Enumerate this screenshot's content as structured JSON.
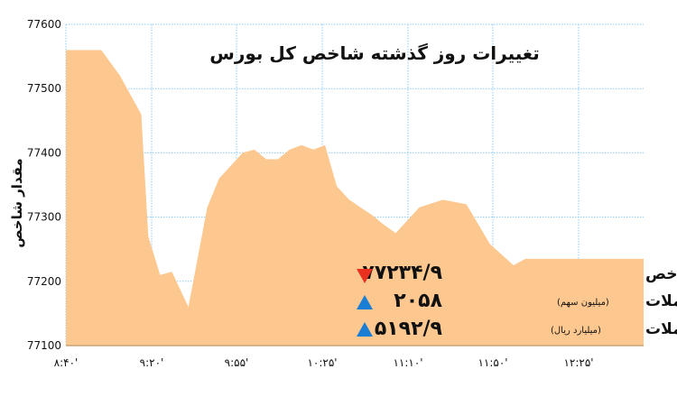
{
  "chart_data": {
    "type": "area",
    "title": "تغییرات روز گذشته شاخص کل بورس",
    "ylabel": "مقدار شاخص",
    "xlabel": "",
    "ylim": [
      77100,
      77600
    ],
    "yticks": [
      77100,
      77200,
      77300,
      77400,
      77500,
      77600
    ],
    "xticks": [
      "۸:۴۰'",
      "۹:۲۰'",
      "۹:۵۵'",
      "۱۰:۲۵'",
      "۱۱:۱۰'",
      "۱۱:۵۰'",
      "۱۲:۲۵'"
    ],
    "x": [
      "08:40",
      "08:55",
      "09:03",
      "09:12",
      "09:15",
      "09:20",
      "09:25",
      "09:32",
      "09:40",
      "09:45",
      "09:55",
      "10:00",
      "10:05",
      "10:10",
      "10:15",
      "10:20",
      "10:25",
      "10:30",
      "10:35",
      "10:40",
      "10:45",
      "10:50",
      "10:55",
      "11:00",
      "11:10",
      "11:20",
      "11:30",
      "11:40",
      "11:50",
      "11:55",
      "12:00",
      "12:05",
      "12:10",
      "12:15",
      "12:20",
      "12:25"
    ],
    "values": [
      77560,
      77560,
      77520,
      77460,
      77270,
      77210,
      77215,
      77160,
      77315,
      77360,
      77400,
      77405,
      77390,
      77390,
      77405,
      77412,
      77405,
      77412,
      77348,
      77328,
      77315,
      77303,
      77288,
      77275,
      77315,
      77327,
      77320,
      77258,
      77225,
      77235,
      77235,
      77235,
      77235,
      77235,
      77235,
      77235
    ],
    "grid": true,
    "fill_color": "#fcc88f",
    "grid_color": "#8fcaf2",
    "axis_color": "#c9a277",
    "summary": [
      {
        "label": "شاخص",
        "unit": "",
        "value": "۷۷۲۳۴/۹",
        "direction": "down",
        "color": "#e8321f"
      },
      {
        "label": "حجم معاملات",
        "unit": "(میلیون سهم)",
        "value": "۲۰۵۸",
        "direction": "up",
        "color": "#1a7ed4"
      },
      {
        "label": "ارزش معاملات",
        "unit": "(میلیارد ریال)",
        "value": "۵۱۹۲/۹",
        "direction": "up",
        "color": "#1a7ed4"
      }
    ]
  }
}
